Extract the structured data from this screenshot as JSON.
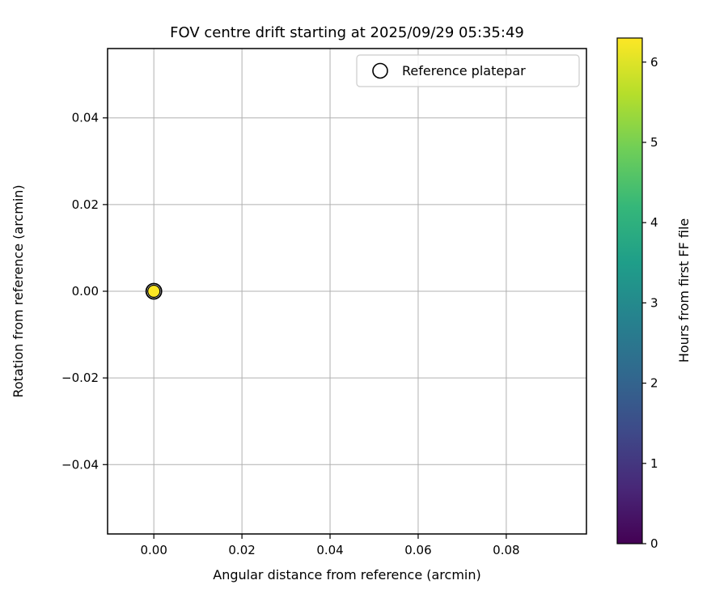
{
  "figure": {
    "background": "#ffffff"
  },
  "chart_data": {
    "type": "scatter",
    "title": "FOV centre drift starting at 2025/09/29 05:35:49",
    "xlabel": "Angular distance from reference (arcmin)",
    "ylabel": "Rotation from reference (arcmin)",
    "xlim": [
      -0.0105,
      0.0982
    ],
    "ylim": [
      -0.056,
      0.056
    ],
    "grid": true,
    "xticks": [
      {
        "value": 0.0,
        "label": "0.00"
      },
      {
        "value": 0.02,
        "label": "0.02"
      },
      {
        "value": 0.04,
        "label": "0.04"
      },
      {
        "value": 0.06,
        "label": "0.06"
      },
      {
        "value": 0.08,
        "label": "0.08"
      }
    ],
    "yticks": [
      {
        "value": -0.04,
        "label": "−0.04"
      },
      {
        "value": -0.02,
        "label": "−0.02"
      },
      {
        "value": 0.0,
        "label": "0.00"
      },
      {
        "value": 0.02,
        "label": "0.02"
      },
      {
        "value": 0.04,
        "label": "0.04"
      }
    ],
    "points": [
      {
        "x": 0.0,
        "y": 0.0,
        "hours": 6.3,
        "color": "#fde725"
      }
    ],
    "reference_marker": {
      "x": 0.0,
      "y": 0.0
    },
    "legend": [
      {
        "label": "Reference platepar",
        "marker": "open-circle"
      }
    ],
    "colorbar": {
      "label": "Hours from first FF file",
      "vmin": 0,
      "vmax": 6.3,
      "ticks": [
        {
          "value": 0,
          "label": "0"
        },
        {
          "value": 1,
          "label": "1"
        },
        {
          "value": 2,
          "label": "2"
        },
        {
          "value": 3,
          "label": "3"
        },
        {
          "value": 4,
          "label": "4"
        },
        {
          "value": 5,
          "label": "5"
        },
        {
          "value": 6,
          "label": "6"
        }
      ],
      "colormap": "viridis",
      "stops": [
        "#440154",
        "#482878",
        "#3e4a89",
        "#31688e",
        "#26828e",
        "#1f9e89",
        "#35b779",
        "#6ece58",
        "#b5de2b",
        "#fde725"
      ]
    },
    "colors": {
      "grid": "#b0b0b0",
      "spine": "#000000",
      "marker_edge": "#000000",
      "legend_edge": "#cccccc"
    }
  }
}
